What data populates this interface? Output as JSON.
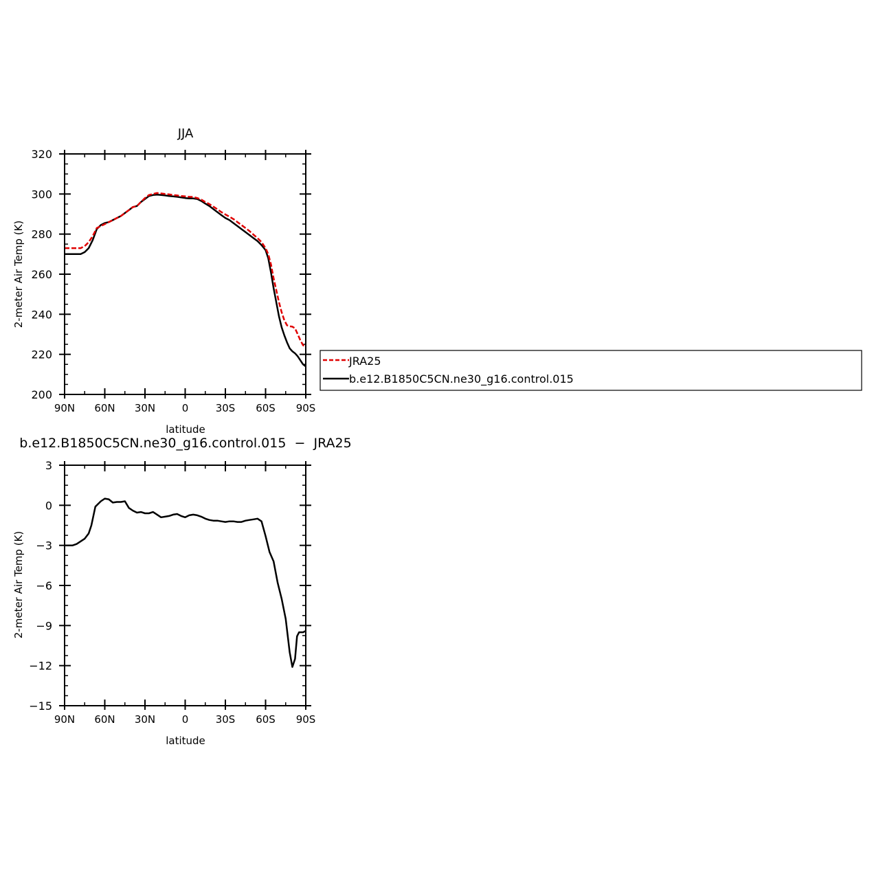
{
  "chart_data": [
    {
      "type": "line",
      "title": "JJA",
      "xlabel": "latitude",
      "ylabel": "2-meter Air Temp (K)",
      "xlim": [
        90,
        -90
      ],
      "ylim": [
        200,
        320
      ],
      "xticks": [
        90,
        60,
        30,
        0,
        -30,
        -60,
        -90
      ],
      "xtick_labels": [
        "90N",
        "60N",
        "30N",
        "0",
        "30S",
        "60S",
        "90S"
      ],
      "yticks": [
        200,
        220,
        240,
        260,
        280,
        300,
        320
      ],
      "ytick_labels": [
        "200",
        "220",
        "240",
        "260",
        "280",
        "300",
        "320"
      ],
      "legend_position": "right",
      "series": [
        {
          "name": "JRA25",
          "color": "#e00000",
          "dash": "dashed",
          "x": [
            90,
            84,
            78,
            75,
            72,
            69,
            66,
            63,
            60,
            57,
            54,
            51,
            48,
            45,
            42,
            39,
            36,
            33,
            30,
            27,
            24,
            21,
            18,
            15,
            12,
            9,
            6,
            3,
            0,
            -3,
            -6,
            -9,
            -12,
            -15,
            -18,
            -21,
            -24,
            -27,
            -30,
            -33,
            -36,
            -39,
            -42,
            -45,
            -48,
            -51,
            -54,
            -57,
            -60,
            -62,
            -64,
            -66,
            -68,
            -70,
            -72,
            -74,
            -76,
            -78,
            -80,
            -82,
            -84,
            -86,
            -88,
            -90
          ],
          "y": [
            273,
            273,
            273,
            274,
            276,
            279,
            283,
            284,
            285,
            286,
            287,
            288,
            289,
            290.5,
            292,
            293.5,
            294,
            296,
            298,
            299.5,
            300,
            300.5,
            300.3,
            300,
            299.8,
            299.5,
            299.3,
            299,
            298.8,
            298.6,
            298.5,
            298,
            297.2,
            296,
            295,
            293.7,
            292.4,
            291,
            289.8,
            288.7,
            287.5,
            286,
            284.5,
            283,
            281.5,
            279.7,
            278,
            276,
            273,
            270,
            265,
            258,
            252,
            246,
            241,
            237,
            234.5,
            234,
            233.8,
            233,
            230,
            227,
            224.5,
            224
          ]
        },
        {
          "name": "b.e12.B1850C5CN.ne30_g16.control.015",
          "color": "#000000",
          "dash": "solid",
          "x": [
            90,
            84,
            78,
            75,
            72,
            69,
            66,
            63,
            60,
            57,
            54,
            51,
            48,
            45,
            42,
            39,
            36,
            33,
            30,
            27,
            24,
            21,
            18,
            15,
            12,
            9,
            6,
            3,
            0,
            -3,
            -6,
            -9,
            -12,
            -15,
            -18,
            -21,
            -24,
            -27,
            -30,
            -33,
            -36,
            -39,
            -42,
            -45,
            -48,
            -51,
            -54,
            -57,
            -60,
            -62,
            -64,
            -66,
            -68,
            -70,
            -72,
            -74,
            -76,
            -78,
            -80,
            -82,
            -84,
            -86,
            -88,
            -90
          ],
          "y": [
            270,
            270,
            270,
            271,
            273,
            277,
            282.5,
            284.5,
            285.5,
            286,
            287,
            288,
            289,
            290.5,
            292,
            293.5,
            294,
            296,
            297.5,
            299,
            299.5,
            299.7,
            299.5,
            299.3,
            299,
            298.8,
            298.6,
            298.3,
            298,
            297.8,
            297.8,
            297.5,
            296.5,
            295.2,
            294,
            292.5,
            291,
            289.5,
            288,
            287,
            285.5,
            284,
            282.5,
            281,
            279.5,
            278,
            276.5,
            274.5,
            272,
            268,
            261,
            253,
            246,
            239,
            233.5,
            229.5,
            226,
            223,
            221.5,
            220.5,
            219,
            217,
            215,
            214
          ]
        }
      ]
    },
    {
      "type": "line",
      "title": "b.e12.B1850C5CN.ne30_g16.control.015  −  JRA25",
      "xlabel": "latitude",
      "ylabel": "2-meter Air Temp (K)",
      "xlim": [
        90,
        -90
      ],
      "ylim": [
        -15,
        3
      ],
      "xticks": [
        90,
        60,
        30,
        0,
        -30,
        -60,
        -90
      ],
      "xtick_labels": [
        "90N",
        "60N",
        "30N",
        "0",
        "30S",
        "60S",
        "90S"
      ],
      "yticks": [
        -15,
        -12,
        -9,
        -6,
        -3,
        0,
        3
      ],
      "ytick_labels": [
        "−15",
        "−12",
        "−9",
        "−6",
        "−3",
        "0",
        "3"
      ],
      "series": [
        {
          "name": "",
          "color": "#000000",
          "dash": "solid",
          "x": [
            90,
            84,
            81,
            78,
            75,
            72,
            70,
            67,
            63,
            60,
            57,
            54,
            51,
            48,
            45,
            42,
            39,
            36,
            33,
            30,
            27,
            24,
            21,
            18,
            15,
            12,
            9,
            6,
            3,
            0,
            -3,
            -6,
            -9,
            -12,
            -15,
            -18,
            -21,
            -24,
            -27,
            -30,
            -33,
            -36,
            -39,
            -42,
            -45,
            -48,
            -51,
            -54,
            -57,
            -60,
            -63,
            -66,
            -69,
            -72,
            -75,
            -78,
            -80,
            -82,
            -83.5,
            -85,
            -86.5,
            -88,
            -90
          ],
          "y": [
            -3,
            -3,
            -2.9,
            -2.7,
            -2.5,
            -2.1,
            -1.5,
            -0.1,
            0.3,
            0.5,
            0.45,
            0.2,
            0.25,
            0.25,
            0.3,
            -0.2,
            -0.4,
            -0.55,
            -0.5,
            -0.6,
            -0.6,
            -0.5,
            -0.7,
            -0.9,
            -0.85,
            -0.8,
            -0.7,
            -0.65,
            -0.8,
            -0.9,
            -0.75,
            -0.7,
            -0.75,
            -0.85,
            -1.0,
            -1.1,
            -1.15,
            -1.15,
            -1.2,
            -1.25,
            -1.2,
            -1.2,
            -1.25,
            -1.25,
            -1.15,
            -1.1,
            -1.05,
            -1.0,
            -1.2,
            -2.3,
            -3.5,
            -4.2,
            -5.8,
            -7.0,
            -8.5,
            -11.0,
            -12.1,
            -11.5,
            -9.8,
            -9.5,
            -9.5,
            -9.5,
            -9.4
          ]
        }
      ]
    }
  ]
}
